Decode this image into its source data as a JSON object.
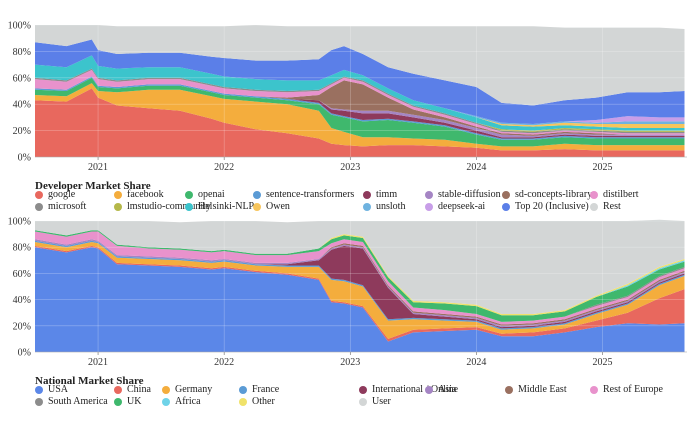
{
  "chart_data": [
    {
      "type": "area",
      "stacked": true,
      "title": "Developer Market Share",
      "x": [
        2020.5,
        2020.75,
        2020.95,
        2021.0,
        2021.15,
        2021.4,
        2021.65,
        2021.9,
        2022.0,
        2022.25,
        2022.5,
        2022.75,
        2022.85,
        2022.95,
        2023.1,
        2023.3,
        2023.5,
        2023.75,
        2024.0,
        2024.2,
        2024.45,
        2024.7,
        2024.95,
        2025.2,
        2025.45,
        2025.65
      ],
      "xticks": [
        "2021",
        "2022",
        "2023",
        "2024",
        "2025"
      ],
      "xtick_values": [
        2021,
        2022,
        2023,
        2024,
        2025
      ],
      "xlim": [
        2020.5,
        2025.67
      ],
      "ylim": [
        0,
        100
      ],
      "yticks": [
        "0%",
        "20%",
        "40%",
        "60%",
        "80%",
        "100%"
      ],
      "series": [
        {
          "name": "google",
          "color": "#e8685e",
          "values": [
            43,
            42,
            52,
            45,
            39,
            37,
            35,
            29,
            26,
            21,
            18,
            14,
            10,
            9,
            8,
            9,
            9,
            8,
            7,
            5,
            5,
            6,
            5,
            5,
            5,
            5
          ]
        },
        {
          "name": "facebook",
          "color": "#f4ad3d",
          "values": [
            4,
            4,
            4,
            5,
            10,
            14,
            16,
            17,
            18,
            21,
            22,
            21,
            12,
            10,
            7,
            6,
            5,
            5,
            3,
            3,
            3,
            4,
            4,
            4,
            4,
            4
          ]
        },
        {
          "name": "openai",
          "color": "#3fb86d",
          "values": [
            4,
            4,
            4,
            3,
            3,
            3,
            3,
            3,
            3,
            3,
            3,
            5,
            10,
            11,
            12,
            13,
            12,
            10,
            7,
            5,
            5,
            5,
            5,
            5,
            5,
            5
          ]
        },
        {
          "name": "sentence-transformers",
          "color": "#5b9bd5",
          "values": [
            1,
            1,
            1,
            1,
            1,
            1,
            1,
            1,
            1,
            1,
            1,
            1,
            1,
            1,
            1,
            1,
            1,
            1,
            1,
            1,
            1,
            1,
            1,
            1,
            1,
            1
          ]
        },
        {
          "name": "timm",
          "color": "#8e3a5c",
          "values": [
            0,
            0,
            0,
            0,
            0,
            0,
            0,
            0,
            0,
            0,
            0,
            2,
            3,
            4,
            5,
            4,
            3,
            2,
            2,
            1,
            1,
            1,
            1,
            1,
            1,
            1
          ]
        },
        {
          "name": "stable-diffusion",
          "color": "#a585c4",
          "values": [
            0,
            0,
            0,
            0,
            0,
            0,
            0,
            0,
            0,
            0,
            0,
            0,
            1,
            1,
            2,
            2,
            2,
            2,
            2,
            2,
            1,
            1,
            1,
            1,
            1,
            1
          ]
        },
        {
          "name": "sd-concepts-library",
          "color": "#9a7060",
          "values": [
            0,
            0,
            0,
            0,
            0,
            0,
            0,
            0,
            0,
            0,
            1,
            4,
            16,
            22,
            20,
            10,
            4,
            2,
            1,
            1,
            1,
            1,
            1,
            0,
            0,
            0
          ]
        },
        {
          "name": "distilbert",
          "color": "#e892cc",
          "values": [
            7,
            6,
            5,
            5,
            4,
            4,
            4,
            4,
            4,
            4,
            4,
            3,
            2,
            2,
            2,
            2,
            2,
            2,
            2,
            1,
            1,
            1,
            1,
            1,
            1,
            1
          ]
        },
        {
          "name": "microsoft",
          "color": "#8c8c8c",
          "values": [
            1,
            1,
            1,
            1,
            1,
            1,
            1,
            1,
            1,
            1,
            1,
            1,
            1,
            1,
            1,
            1,
            1,
            1,
            1,
            1,
            1,
            1,
            1,
            1,
            1,
            1
          ]
        },
        {
          "name": "lmstudio-community",
          "color": "#b5b84a",
          "values": [
            0,
            0,
            0,
            0,
            0,
            0,
            0,
            0,
            0,
            0,
            0,
            0,
            0,
            0,
            0,
            0,
            0,
            0,
            0,
            1,
            1,
            1,
            1,
            1,
            1,
            1
          ]
        },
        {
          "name": "Helsinki-NLP",
          "color": "#3cc4cc",
          "values": [
            10,
            10,
            10,
            9,
            9,
            8,
            8,
            8,
            8,
            8,
            8,
            7,
            6,
            5,
            4,
            4,
            4,
            4,
            4,
            3,
            3,
            2,
            2,
            2,
            2,
            2
          ]
        },
        {
          "name": "Owen",
          "color": "#f7c55c",
          "values": [
            0,
            0,
            0,
            0,
            0,
            0,
            0,
            0,
            0,
            0,
            0,
            0,
            0,
            0,
            0,
            0,
            0,
            0,
            0,
            1,
            1,
            2,
            2,
            3,
            3,
            3
          ]
        },
        {
          "name": "unsloth",
          "color": "#6fb3e0",
          "values": [
            0,
            0,
            0,
            0,
            0,
            0,
            0,
            0,
            0,
            0,
            0,
            0,
            0,
            0,
            0,
            0,
            0,
            0,
            1,
            1,
            1,
            1,
            1,
            2,
            2,
            2
          ]
        },
        {
          "name": "deepseek-ai",
          "color": "#c89ee8",
          "values": [
            0,
            0,
            0,
            0,
            0,
            0,
            0,
            0,
            0,
            0,
            0,
            0,
            0,
            0,
            0,
            0,
            0,
            0,
            0,
            0,
            0,
            0,
            2,
            4,
            3,
            3
          ]
        },
        {
          "name": "Top 20 (Inclusive)",
          "color": "#5b7fe8",
          "values": [
            17,
            16,
            12,
            12,
            11,
            11,
            11,
            13,
            14,
            14,
            15,
            16,
            19,
            18,
            16,
            16,
            20,
            21,
            22,
            15,
            14,
            16,
            17,
            18,
            19,
            20
          ]
        },
        {
          "name": "Rest",
          "color": "#d3d6d6",
          "values": [
            13,
            16,
            11,
            19,
            21,
            20,
            20,
            23,
            24,
            27,
            26,
            25,
            18,
            15,
            21,
            31,
            36,
            41,
            46,
            58,
            60,
            55,
            53,
            49,
            49,
            47
          ]
        }
      ]
    },
    {
      "type": "area",
      "stacked": true,
      "title": "National Market Share",
      "x": [
        2020.5,
        2020.75,
        2020.95,
        2021.0,
        2021.15,
        2021.4,
        2021.65,
        2021.9,
        2022.0,
        2022.25,
        2022.5,
        2022.75,
        2022.85,
        2022.95,
        2023.1,
        2023.3,
        2023.5,
        2023.75,
        2024.0,
        2024.2,
        2024.45,
        2024.7,
        2024.95,
        2025.2,
        2025.45,
        2025.65
      ],
      "xticks": [
        "2021",
        "2022",
        "2023",
        "2024",
        "2025"
      ],
      "xtick_values": [
        2021,
        2022,
        2023,
        2024,
        2025
      ],
      "xlim": [
        2020.5,
        2025.67
      ],
      "ylim": [
        0,
        100
      ],
      "yticks": [
        "0%",
        "20%",
        "40%",
        "60%",
        "80%",
        "100%"
      ],
      "series": [
        {
          "name": "USA",
          "color": "#5b87e8",
          "values": [
            80,
            76,
            80,
            79,
            67,
            66,
            65,
            63,
            64,
            61,
            59,
            55,
            38,
            37,
            34,
            8,
            15,
            16,
            17,
            12,
            12,
            15,
            19,
            22,
            21,
            22
          ]
        },
        {
          "name": "China",
          "color": "#e8685e",
          "values": [
            1,
            1,
            1,
            1,
            1,
            1,
            1,
            1,
            1,
            1,
            1,
            1,
            1,
            1,
            1,
            2,
            2,
            2,
            2,
            2,
            3,
            3,
            5,
            8,
            20,
            26
          ]
        },
        {
          "name": "Germany",
          "color": "#f4ad3d",
          "values": [
            3,
            3,
            3,
            3,
            4,
            4,
            4,
            4,
            4,
            4,
            5,
            9,
            16,
            16,
            15,
            14,
            8,
            6,
            4,
            3,
            3,
            3,
            5,
            6,
            10,
            10
          ]
        },
        {
          "name": "France",
          "color": "#5b9bd5",
          "values": [
            1,
            1,
            1,
            1,
            1,
            1,
            1,
            1,
            1,
            1,
            1,
            1,
            1,
            1,
            1,
            1,
            1,
            1,
            1,
            1,
            1,
            1,
            1,
            1,
            1,
            1
          ]
        },
        {
          "name": "International / Online",
          "color": "#8e3a5c",
          "values": [
            0,
            0,
            0,
            0,
            0,
            0,
            0,
            0,
            0,
            0,
            1,
            4,
            22,
            26,
            28,
            24,
            3,
            2,
            1,
            1,
            1,
            1,
            1,
            1,
            1,
            1
          ]
        },
        {
          "name": "Asia",
          "color": "#a585c4",
          "values": [
            1,
            1,
            1,
            1,
            1,
            1,
            1,
            1,
            1,
            1,
            1,
            1,
            1,
            1,
            1,
            1,
            1,
            1,
            1,
            1,
            1,
            1,
            1,
            1,
            1,
            1
          ]
        },
        {
          "name": "Middle East",
          "color": "#9a7060",
          "values": [
            0,
            0,
            0,
            0,
            0,
            0,
            0,
            0,
            0,
            0,
            0,
            0,
            1,
            1,
            1,
            1,
            1,
            1,
            1,
            1,
            1,
            1,
            1,
            1,
            1,
            1
          ]
        },
        {
          "name": "Rest of Europe",
          "color": "#e892cc",
          "values": [
            6,
            6,
            6,
            7,
            7,
            6,
            6,
            6,
            6,
            6,
            6,
            6,
            3,
            3,
            3,
            3,
            3,
            3,
            2,
            2,
            2,
            2,
            2,
            2,
            2,
            2
          ]
        },
        {
          "name": "South America",
          "color": "#8c8c8c",
          "values": [
            0,
            0,
            0,
            0,
            0,
            0,
            0,
            0,
            0,
            0,
            0,
            0,
            0,
            0,
            0,
            0,
            0,
            0,
            0,
            0,
            0,
            0,
            1,
            1,
            1,
            1
          ]
        },
        {
          "name": "UK",
          "color": "#3fb86d",
          "values": [
            1,
            1,
            1,
            1,
            1,
            1,
            1,
            1,
            1,
            1,
            1,
            2,
            3,
            3,
            3,
            3,
            4,
            5,
            6,
            5,
            4,
            4,
            6,
            7,
            5,
            4
          ]
        },
        {
          "name": "Africa",
          "color": "#6fd3e8",
          "values": [
            0,
            0,
            0,
            0,
            0,
            0,
            0,
            0,
            0,
            0,
            0,
            0,
            0,
            0,
            0,
            0,
            0,
            0,
            0,
            0,
            0,
            0,
            0,
            1,
            1,
            1
          ]
        },
        {
          "name": "Other",
          "color": "#f0e26a",
          "values": [
            0,
            0,
            0,
            0,
            0,
            0,
            0,
            0,
            0,
            0,
            0,
            0,
            1,
            1,
            1,
            1,
            1,
            1,
            1,
            1,
            1,
            1,
            1,
            1,
            1,
            1
          ]
        },
        {
          "name": "User",
          "color": "#d3d6d6",
          "values": [
            7,
            11,
            7,
            7,
            18,
            20,
            20,
            23,
            22,
            25,
            24,
            21,
            13,
            10,
            12,
            42,
            61,
            62,
            64,
            71,
            71,
            68,
            57,
            48,
            36,
            29
          ]
        }
      ]
    }
  ]
}
